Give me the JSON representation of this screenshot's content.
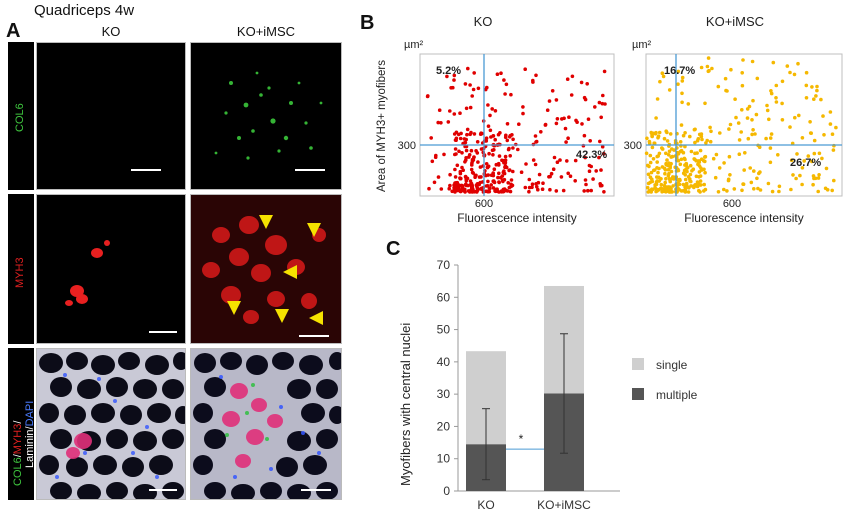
{
  "panelA": {
    "letter": "A",
    "title": "Quadriceps 4w",
    "columns": [
      "KO",
      "KO+iMSC"
    ],
    "rows": [
      {
        "label": "COL6",
        "color": "#3ec43e"
      },
      {
        "label": "MYH3",
        "color": "#e02020"
      },
      {
        "label_parts": [
          {
            "text": "COL6",
            "color": "#3ec43e"
          },
          {
            "text": "/",
            "color": "#ffffff"
          },
          {
            "text": "MYH3",
            "color": "#e02020"
          },
          {
            "text": "/",
            "color": "#ffffff"
          },
          {
            "text": "Laminin",
            "color": "#ffffff"
          },
          {
            "text": "/",
            "color": "#ffffff"
          },
          {
            "text": "DAPI",
            "color": "#4a7cff"
          }
        ]
      }
    ]
  },
  "panelB": {
    "letter": "B",
    "ylabel": "Area of MYH3+ myofibers",
    "charts": [
      {
        "title": "KO",
        "unit": "µm²",
        "color": "#e00000",
        "q_top_left": "5.2%",
        "q_right": "42.3%",
        "xtick": "600",
        "ytick": "300",
        "xlabel": "Fluorescence intensity"
      },
      {
        "title": "KO+iMSC",
        "unit": "µm²",
        "color": "#f5b800",
        "q_top_left": "16.7%",
        "q_right": "26.7%",
        "xtick": "600",
        "ytick": "300",
        "xlabel": "Fluorescence intensity"
      }
    ]
  },
  "chart_data": {
    "type": "bar",
    "panel_letter": "C",
    "stacked": true,
    "categories": [
      "KO",
      "KO+iMSC"
    ],
    "ylabel": "Myofibers with central nuclei",
    "ylim": [
      0,
      70
    ],
    "yticks": [
      0,
      10,
      20,
      30,
      40,
      50,
      60,
      70
    ],
    "series": [
      {
        "name": "multiple",
        "color": "#555555",
        "values": [
          14.5,
          30.2
        ],
        "error": [
          11,
          18.5
        ]
      },
      {
        "name": "single",
        "color": "#cfcfcf",
        "values": [
          28.8,
          33.3
        ],
        "error": null
      }
    ],
    "legend_position": "right",
    "significance": "*"
  }
}
